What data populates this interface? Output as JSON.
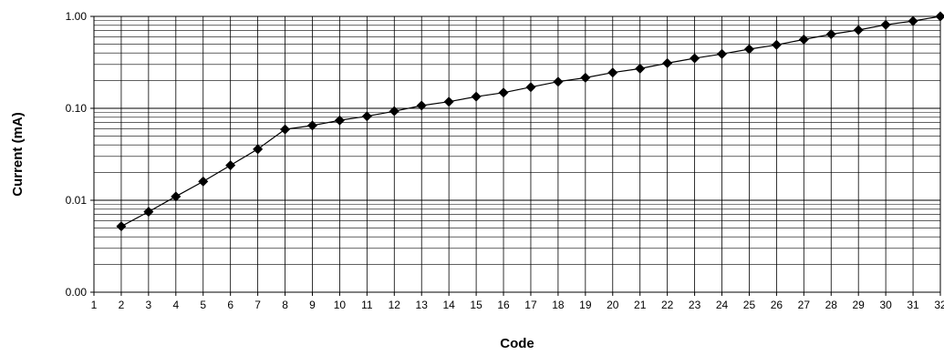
{
  "chart_data": {
    "type": "line",
    "title": "",
    "xlabel": "Code",
    "ylabel": "Current (mA)",
    "x_scale": "linear",
    "y_scale": "log",
    "xlim": [
      1,
      32
    ],
    "ylim": [
      0.001,
      1.0
    ],
    "x_ticks": [
      "1",
      "2",
      "3",
      "4",
      "5",
      "6",
      "7",
      "8",
      "9",
      "10",
      "11",
      "12",
      "13",
      "14",
      "15",
      "16",
      "17",
      "18",
      "19",
      "20",
      "21",
      "22",
      "23",
      "24",
      "25",
      "26",
      "27",
      "28",
      "29",
      "30",
      "31",
      "32"
    ],
    "y_ticks": [
      {
        "value": 0.001,
        "label": "0.00"
      },
      {
        "value": 0.01,
        "label": "0.01"
      },
      {
        "value": 0.1,
        "label": "0.10"
      },
      {
        "value": 1.0,
        "label": "1.00"
      }
    ],
    "grid": true,
    "legend": "none",
    "marker": "diamond",
    "line_color": "#000000",
    "series": [
      {
        "x": [
          2,
          3,
          4,
          5,
          6,
          7,
          8,
          9,
          10,
          11,
          12,
          13,
          14,
          15,
          16,
          17,
          18,
          19,
          20,
          21,
          22,
          23,
          24,
          25,
          26,
          27,
          28,
          29,
          30,
          31,
          32
        ],
        "values": [
          0.0052,
          0.0075,
          0.011,
          0.016,
          0.024,
          0.036,
          0.059,
          0.065,
          0.074,
          0.082,
          0.093,
          0.107,
          0.118,
          0.134,
          0.148,
          0.17,
          0.195,
          0.215,
          0.245,
          0.27,
          0.31,
          0.35,
          0.39,
          0.44,
          0.49,
          0.56,
          0.64,
          0.71,
          0.81,
          0.89,
          1.0
        ]
      }
    ]
  }
}
